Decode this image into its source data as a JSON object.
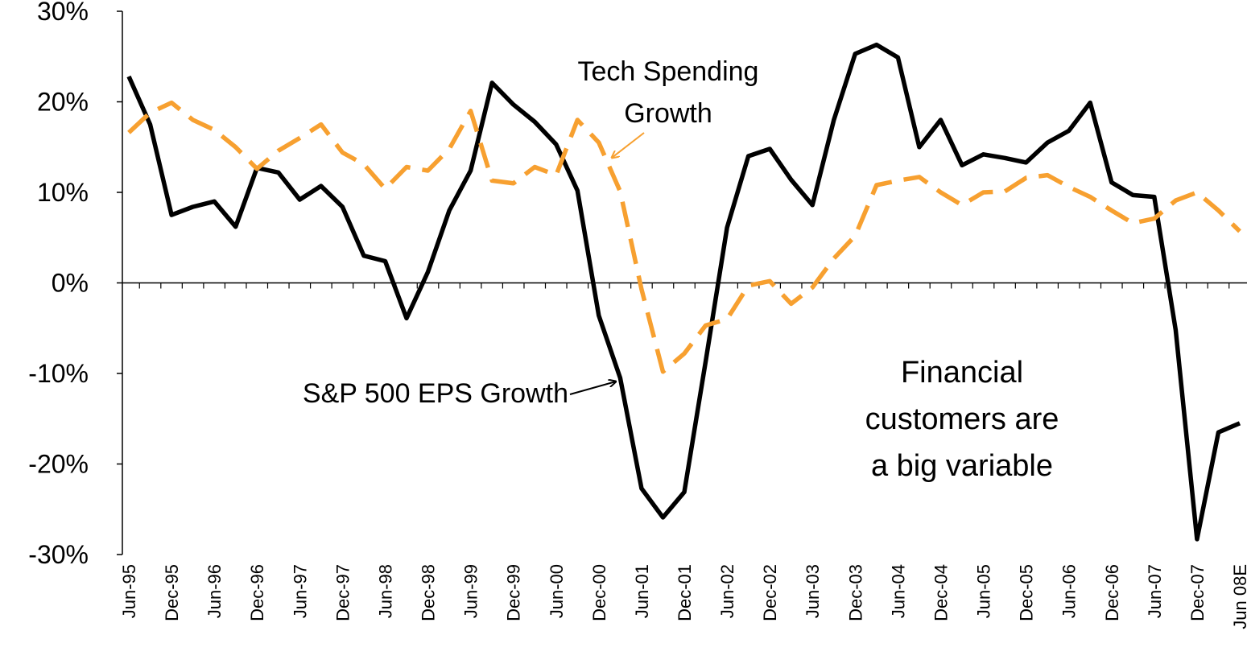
{
  "chart_data": {
    "type": "line",
    "categories": [
      "Jun-95",
      null,
      "Dec-95",
      null,
      "Jun-96",
      null,
      "Dec-96",
      null,
      "Jun-97",
      null,
      "Dec-97",
      null,
      "Jun-98",
      null,
      "Dec-98",
      null,
      "Jun-99",
      null,
      "Dec-99",
      null,
      "Jun-00",
      null,
      "Dec-00",
      null,
      "Jun-01",
      null,
      "Dec-01",
      null,
      "Jun-02",
      null,
      "Dec-02",
      null,
      "Jun-03",
      null,
      "Dec-03",
      null,
      "Jun-04",
      null,
      "Dec-04",
      null,
      "Jun-05",
      null,
      "Dec-05",
      null,
      "Jun-06",
      null,
      "Dec-06",
      null,
      "Jun-07",
      null,
      "Dec-07",
      null,
      "Jun 08E"
    ],
    "series": [
      {
        "name": "S&P 500 EPS Growth",
        "color": "#000000",
        "dashed": false,
        "values": [
          22.8,
          17.5,
          7.5,
          8.4,
          9,
          6.2,
          12.7,
          12.2,
          9.2,
          10.7,
          8.4,
          3,
          2.4,
          -3.9,
          1.2,
          8,
          12.4,
          22.1,
          19.7,
          17.8,
          15.3,
          10.2,
          -3.6,
          -10.5,
          -22.7,
          -25.9,
          -23.1,
          -8.7,
          6.1,
          14,
          14.8,
          11.4,
          8.6,
          18,
          25.3,
          26.3,
          24.9,
          15,
          18,
          13,
          14.2,
          13.8,
          13.3,
          15.5,
          16.8,
          19.9,
          11.1,
          9.7,
          9.5,
          -5.2,
          -28.3,
          -16.5,
          -15.5
        ]
      },
      {
        "name": "Tech Spending Growth",
        "color": "#f7a030",
        "dashed": true,
        "values": [
          16.6,
          18.8,
          19.9,
          18,
          16.9,
          15,
          12.6,
          14.6,
          16,
          17.5,
          14.4,
          13.1,
          10.4,
          12.8,
          12.4,
          14.8,
          19,
          11.3,
          11,
          12.8,
          11.9,
          18,
          15.5,
          10.1,
          -0.7,
          -9.8,
          -7.8,
          -4.7,
          -4,
          -0.3,
          0.2,
          -2.3,
          -0.5,
          2.7,
          5.2,
          10.8,
          11.3,
          11.7,
          10,
          8.6,
          10,
          10.1,
          11.6,
          11.9,
          10.6,
          9.5,
          8,
          6.6,
          7.1,
          9.1,
          10,
          8,
          5.7
        ]
      }
    ],
    "ylim": [
      -30,
      30
    ],
    "yticks": [
      {
        "value": 30,
        "label": "30%"
      },
      {
        "value": 20,
        "label": "20%"
      },
      {
        "value": 10,
        "label": "10%"
      },
      {
        "value": 0,
        "label": "0%"
      },
      {
        "value": -10,
        "label": "-10%"
      },
      {
        "value": -20,
        "label": "-20%"
      },
      {
        "value": -30,
        "label": "-30%"
      }
    ],
    "annotations": [
      {
        "lines": [
          "Tech Spending",
          "Growth"
        ]
      },
      {
        "lines": [
          "S&P 500 EPS Growth"
        ]
      },
      {
        "lines": [
          "Financial",
          "customers are",
          "a big variable"
        ]
      }
    ]
  }
}
